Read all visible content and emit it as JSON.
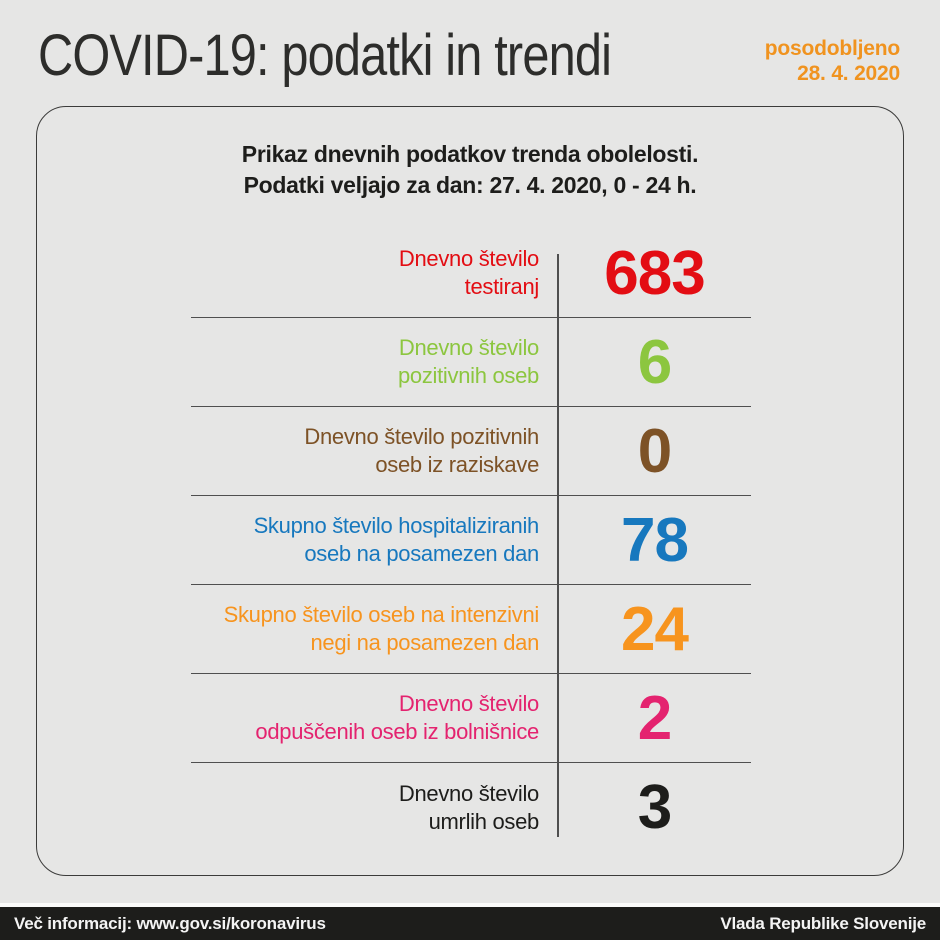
{
  "page": {
    "title": "COVID-19: podatki in trendi",
    "updated_label": "posodobljeno",
    "updated_date": "28. 4. 2020"
  },
  "card": {
    "header_line1": "Prikaz dnevnih podatkov trenda obolelosti.",
    "header_line2": "Podatki veljajo za dan: 27. 4. 2020, 0 - 24 h.",
    "rows": [
      {
        "label_line1": "Dnevno število",
        "label_line2": "testiranj",
        "value": "683",
        "color": "#e30d13"
      },
      {
        "label_line1": "Dnevno število",
        "label_line2": "pozitivnih oseb",
        "value": "6",
        "color": "#8cc63f"
      },
      {
        "label_line1": "Dnevno število pozitivnih",
        "label_line2": "oseb iz raziskave",
        "value": "0",
        "color": "#7d5226"
      },
      {
        "label_line1": "Skupno število hospitaliziranih",
        "label_line2": "oseb na posamezen dan",
        "value": "78",
        "color": "#1778be"
      },
      {
        "label_line1": "Skupno število oseb na intenzivni",
        "label_line2": "negi na posamezen dan",
        "value": "24",
        "color": "#f7941e"
      },
      {
        "label_line1": "Dnevno število",
        "label_line2": "odpuščenih oseb iz bolnišnice",
        "value": "2",
        "color": "#e4236f"
      },
      {
        "label_line1": "Dnevno število",
        "label_line2": "umrlih oseb",
        "value": "3",
        "color": "#1d1d1b"
      }
    ]
  },
  "footer": {
    "left": "Več informacij: www.gov.si/koronavirus",
    "right": "Vlada Republike Slovenije"
  },
  "colors": {
    "background": "#e6e6e5",
    "title_dark": "#2d2d2b",
    "updated_orange": "#f0931f",
    "divider_gray": "#4f4f4f",
    "card_border": "#3b3b3a",
    "footer_bg": "#1d1d1b",
    "footer_text": "#f4f4f4"
  },
  "chart_data": {
    "type": "table",
    "title": "COVID-19: podatki in trendi",
    "subtitle": "Prikaz dnevnih podatkov trenda obolelosti. Podatki veljajo za dan: 27. 4. 2020, 0 - 24 h.",
    "updated": "28. 4. 2020",
    "categories": [
      "Dnevno število testiranj",
      "Dnevno število pozitivnih oseb",
      "Dnevno število pozitivnih oseb iz raziskave",
      "Skupno število hospitaliziranih oseb na posamezen dan",
      "Skupno število oseb na intenzivni negi na posamezen dan",
      "Dnevno število odpuščenih oseb iz bolnišnice",
      "Dnevno število umrlih oseb"
    ],
    "values": [
      683,
      6,
      0,
      78,
      24,
      2,
      3
    ],
    "colors": [
      "#e30d13",
      "#8cc63f",
      "#7d5226",
      "#1778be",
      "#f7941e",
      "#e4236f",
      "#1d1d1b"
    ]
  }
}
